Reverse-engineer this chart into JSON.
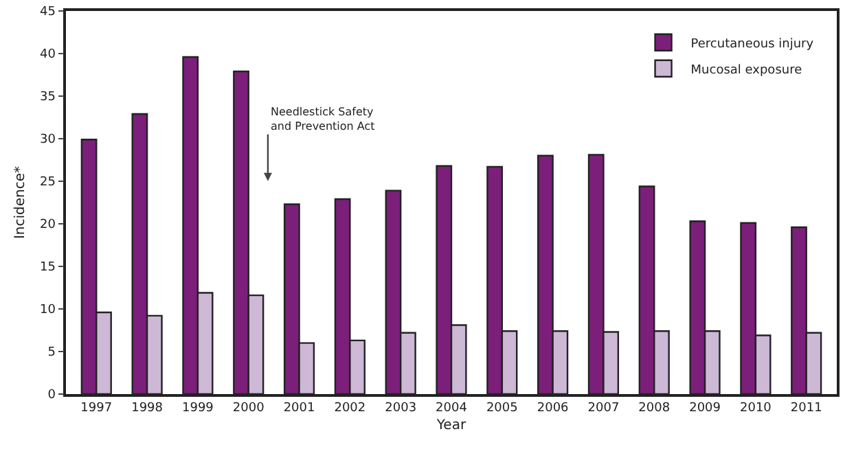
{
  "chart_data": {
    "type": "bar",
    "xlabel": "Year",
    "ylabel": "Incidence*",
    "categories": [
      "1997",
      "1998",
      "1999",
      "2000",
      "2001",
      "2002",
      "2003",
      "2004",
      "2005",
      "2006",
      "2007",
      "2008",
      "2009",
      "2010",
      "2011"
    ],
    "series": [
      {
        "name": "Percutaneous injury",
        "color": "#7b1f7b",
        "values": [
          29.9,
          32.9,
          39.6,
          37.9,
          22.3,
          22.9,
          23.9,
          26.8,
          26.7,
          28.0,
          28.1,
          24.4,
          20.3,
          20.1,
          19.6
        ]
      },
      {
        "name": "Mucosal exposure",
        "color": "#cdb8d6",
        "values": [
          9.6,
          9.2,
          11.9,
          11.6,
          6.0,
          6.3,
          7.2,
          8.1,
          7.4,
          7.4,
          7.3,
          7.4,
          7.4,
          6.9,
          7.2
        ]
      }
    ],
    "ylim": [
      0,
      45
    ],
    "yticks": [
      0,
      5,
      10,
      15,
      20,
      25,
      30,
      35,
      40,
      45
    ],
    "grid": false,
    "legend": "top right",
    "annotations": [
      "Needlestick Safety\nand Prevention Act"
    ]
  }
}
